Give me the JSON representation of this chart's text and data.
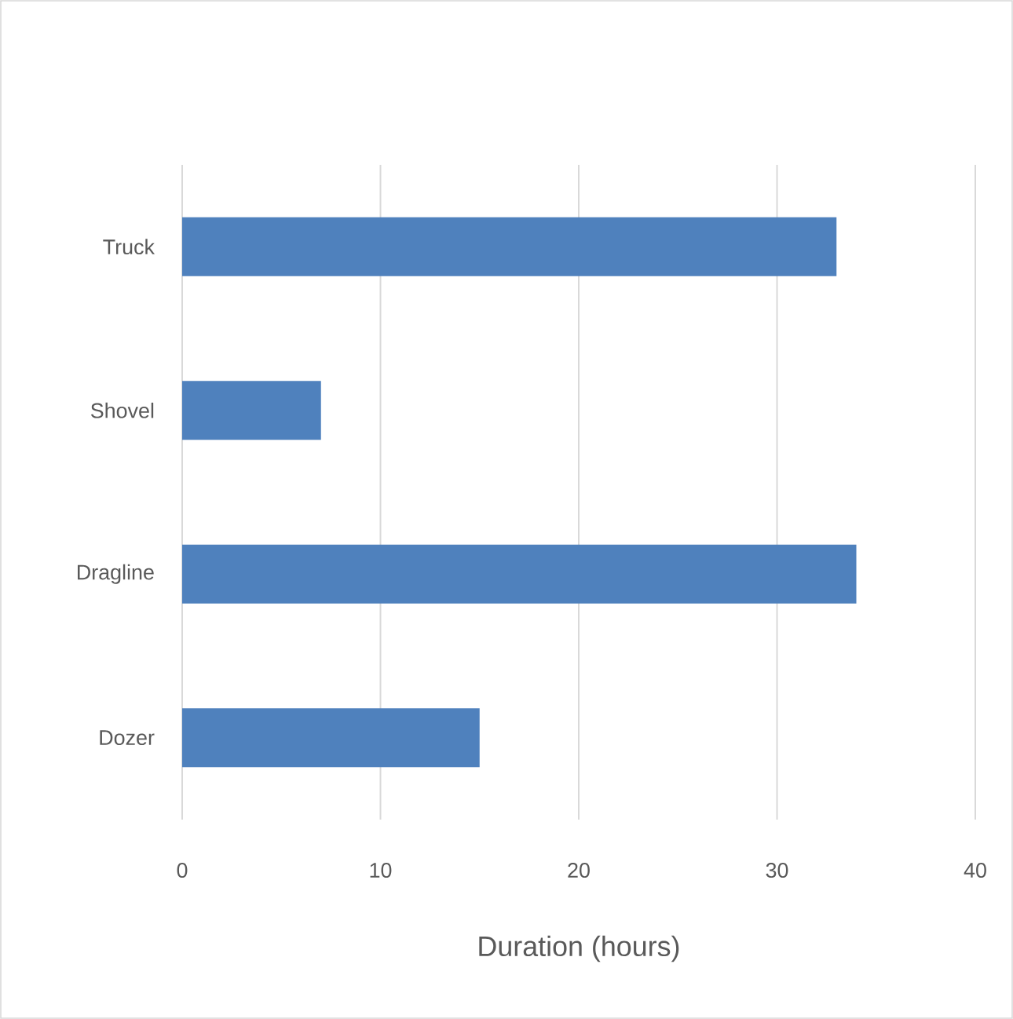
{
  "chart_data": {
    "type": "bar",
    "orientation": "horizontal",
    "xlabel": "Duration (hours)",
    "categories": [
      "Truck",
      "Shovel",
      "Dragline",
      "Dozer"
    ],
    "values": [
      33,
      7,
      34,
      15
    ],
    "color": "#4f81bd",
    "xlim": [
      0,
      40
    ],
    "xticks": [
      0,
      10,
      20,
      30,
      40
    ],
    "grid": "x"
  }
}
